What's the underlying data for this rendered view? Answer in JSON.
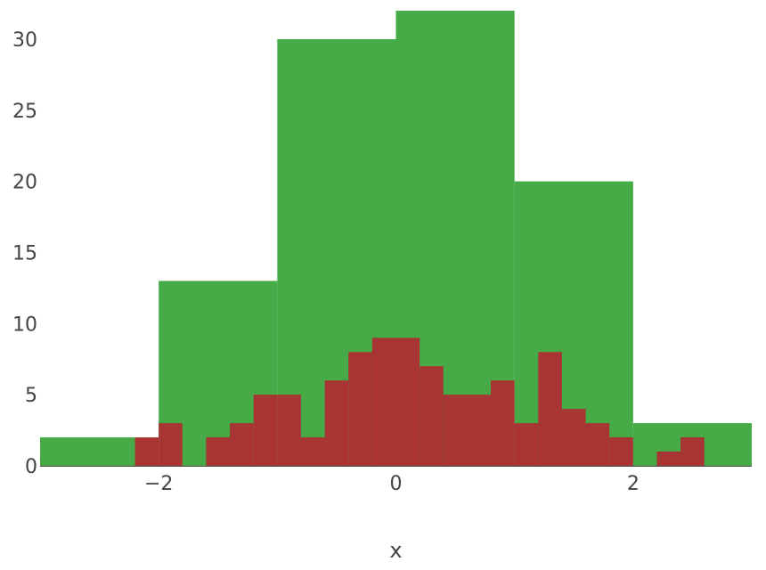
{
  "chart_data": {
    "type": "bar",
    "title": "",
    "xlabel": "x",
    "ylabel": "",
    "xlim": [
      -3,
      3
    ],
    "ylim": [
      0,
      32
    ],
    "grid": false,
    "x_ticks": [
      -2,
      0,
      2
    ],
    "x_tick_labels": [
      "−2",
      "0",
      "2"
    ],
    "y_ticks": [
      0,
      5,
      10,
      15,
      20,
      25,
      30
    ],
    "y_tick_labels": [
      "0",
      "5",
      "10",
      "15",
      "20",
      "25",
      "30"
    ],
    "series": [
      {
        "color": "#46aa46",
        "bin_start": -3,
        "bin_size": 1,
        "values": [
          2,
          13,
          30,
          32,
          20,
          3
        ],
        "edge_bins": [
          {
            "x0": -3,
            "x1": -2.2,
            "value": 2
          },
          {
            "x0": 2,
            "x1": 3,
            "value": 3
          }
        ],
        "bins": [
          {
            "x0": -2,
            "x1": -1,
            "value": 13
          },
          {
            "x0": -1,
            "x1": 0,
            "value": 30
          },
          {
            "x0": 0,
            "x1": 1,
            "value": 32
          },
          {
            "x0": 1,
            "x1": 2,
            "value": 20
          }
        ]
      },
      {
        "color": "#a83434",
        "bin_start": -2.2,
        "bin_size": 0.2,
        "values": [
          2,
          3,
          0,
          2,
          3,
          5,
          5,
          2,
          6,
          8,
          9,
          9,
          7,
          5,
          5,
          6,
          3,
          8,
          4,
          3,
          2,
          0,
          1,
          2
        ]
      }
    ]
  }
}
